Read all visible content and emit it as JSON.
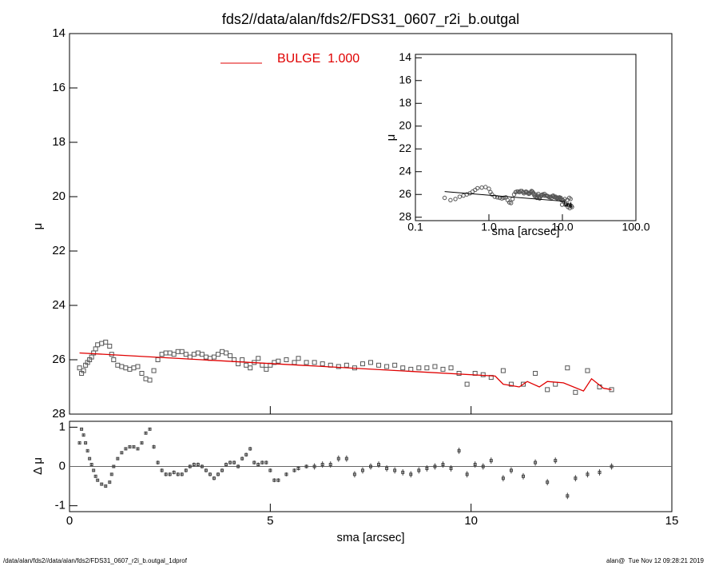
{
  "chart_data": {
    "type": "scatter",
    "title": "fds2//data/alan/fds2/FDS31_0607_r2i_b.outgal",
    "xlabel": "sma [arcsec]",
    "ylabel": "μ",
    "xlim": [
      0,
      15
    ],
    "xticks": [
      0,
      5,
      10,
      15
    ],
    "ylim": [
      28,
      14
    ],
    "yticks": [
      14,
      16,
      18,
      20,
      22,
      24,
      26,
      28
    ],
    "x": [
      0.25,
      0.3,
      0.35,
      0.4,
      0.45,
      0.5,
      0.55,
      0.6,
      0.65,
      0.7,
      0.8,
      0.9,
      1.0,
      1.05,
      1.1,
      1.2,
      1.3,
      1.4,
      1.5,
      1.6,
      1.7,
      1.8,
      1.9,
      2.0,
      2.1,
      2.2,
      2.3,
      2.4,
      2.5,
      2.6,
      2.7,
      2.8,
      2.9,
      3.0,
      3.1,
      3.2,
      3.3,
      3.4,
      3.5,
      3.6,
      3.7,
      3.8,
      3.9,
      4.0,
      4.1,
      4.2,
      4.3,
      4.4,
      4.5,
      4.6,
      4.7,
      4.8,
      4.9,
      5.0,
      5.1,
      5.2,
      5.4,
      5.6,
      5.7,
      5.9,
      6.1,
      6.3,
      6.5,
      6.7,
      6.9,
      7.1,
      7.3,
      7.5,
      7.7,
      7.9,
      8.1,
      8.3,
      8.5,
      8.7,
      8.9,
      9.1,
      9.3,
      9.5,
      9.7,
      9.9,
      10.1,
      10.3,
      10.5,
      10.8,
      11.0,
      11.3,
      11.6,
      11.9,
      12.1,
      12.4,
      12.6,
      12.9,
      13.2,
      13.5
    ],
    "series": [
      {
        "color": "#555555",
        "values": [
          26.3,
          26.5,
          26.4,
          26.2,
          26.1,
          26.0,
          25.9,
          25.75,
          25.6,
          25.45,
          25.4,
          25.35,
          25.5,
          25.8,
          26.0,
          26.2,
          26.25,
          26.3,
          26.35,
          26.3,
          26.25,
          26.5,
          26.7,
          26.75,
          26.4,
          26.0,
          25.8,
          25.75,
          25.75,
          25.8,
          25.7,
          25.7,
          25.8,
          25.9,
          25.8,
          25.75,
          25.8,
          25.9,
          25.95,
          25.9,
          25.8,
          25.7,
          25.75,
          25.85,
          26.0,
          26.15,
          26.0,
          26.2,
          26.3,
          26.1,
          25.95,
          26.2,
          26.35,
          26.2,
          26.1,
          26.05,
          26.0,
          26.1,
          25.95,
          26.1,
          26.1,
          26.15,
          26.2,
          26.25,
          26.2,
          26.3,
          26.15,
          26.1,
          26.2,
          26.25,
          26.2,
          26.3,
          26.35,
          26.3,
          26.3,
          26.25,
          26.35,
          26.3,
          26.5,
          26.9,
          26.5,
          26.55,
          26.65,
          26.4,
          26.9,
          26.9,
          26.5,
          27.1,
          26.9,
          26.3,
          27.2,
          26.4,
          27.0,
          27.1
        ]
      }
    ],
    "model": {
      "name": "BULGE  1.000",
      "color": "#e00000",
      "x": [
        0.25,
        10.6,
        10.8,
        11.2,
        11.4,
        11.7,
        11.9,
        12.3,
        12.8,
        13.0,
        13.3,
        13.5
      ],
      "values": [
        25.75,
        26.6,
        26.9,
        27.0,
        26.8,
        27.0,
        26.8,
        26.85,
        27.15,
        26.7,
        27.05,
        27.1
      ]
    },
    "residual": {
      "ylabel": "Δ μ",
      "ylim": [
        -1.15,
        1.15
      ],
      "yticks": [
        -1,
        0,
        1
      ],
      "zero_line": true,
      "values": [
        0.6,
        0.95,
        0.8,
        0.6,
        0.4,
        0.2,
        0.05,
        -0.1,
        -0.25,
        -0.35,
        -0.45,
        -0.5,
        -0.4,
        -0.2,
        0.0,
        0.2,
        0.35,
        0.45,
        0.5,
        0.5,
        0.45,
        0.6,
        0.85,
        0.95,
        0.5,
        0.1,
        -0.1,
        -0.2,
        -0.2,
        -0.15,
        -0.2,
        -0.2,
        -0.1,
        0.0,
        0.05,
        0.05,
        0.0,
        -0.1,
        -0.2,
        -0.3,
        -0.2,
        -0.1,
        0.05,
        0.1,
        0.1,
        0.0,
        0.2,
        0.3,
        0.45,
        0.1,
        0.05,
        0.1,
        0.1,
        -0.1,
        -0.35,
        -0.35,
        -0.2,
        -0.1,
        -0.05,
        0.0,
        0.0,
        0.05,
        0.05,
        0.2,
        0.2,
        -0.2,
        -0.1,
        0.0,
        0.05,
        -0.05,
        -0.1,
        -0.15,
        -0.2,
        -0.1,
        -0.05,
        0.0,
        0.05,
        -0.05,
        0.4,
        -0.2,
        0.05,
        0.0,
        0.15,
        -0.3,
        -0.1,
        -0.25,
        0.1,
        -0.4,
        0.15,
        -0.75,
        -0.3,
        -0.2,
        -0.15,
        0.0
      ],
      "errors": [
        0.03,
        0.03,
        0.03,
        0.03,
        0.03,
        0.03,
        0.03,
        0.03,
        0.03,
        0.03,
        0.03,
        0.03,
        0.03,
        0.03,
        0.03,
        0.03,
        0.03,
        0.03,
        0.03,
        0.03,
        0.03,
        0.03,
        0.03,
        0.03,
        0.05,
        0.05,
        0.05,
        0.05,
        0.05,
        0.05,
        0.05,
        0.05,
        0.05,
        0.05,
        0.05,
        0.05,
        0.05,
        0.05,
        0.05,
        0.05,
        0.05,
        0.05,
        0.05,
        0.05,
        0.05,
        0.05,
        0.05,
        0.05,
        0.05,
        0.05,
        0.05,
        0.05,
        0.05,
        0.05,
        0.05,
        0.05,
        0.05,
        0.05,
        0.05,
        0.05,
        0.08,
        0.08,
        0.08,
        0.08,
        0.08,
        0.08,
        0.08,
        0.08,
        0.08,
        0.08,
        0.08,
        0.08,
        0.08,
        0.08,
        0.08,
        0.08,
        0.08,
        0.08,
        0.08,
        0.08,
        0.08,
        0.08,
        0.08,
        0.08,
        0.08,
        0.08,
        0.08,
        0.08,
        0.08,
        0.08,
        0.08,
        0.08,
        0.08,
        0.08
      ]
    },
    "inset": {
      "log_x": true,
      "xlabel": "sma [arcsec]",
      "ylabel": "μ",
      "line_color": "#000000",
      "xlim": [
        0.1,
        100
      ],
      "xticks": [
        0.1,
        {
          "value": 1,
          "label": "1.0"
        },
        {
          "value": 10,
          "label": "10.0"
        },
        {
          "value": 100,
          "label": "100.0"
        }
      ],
      "ylim": [
        28.3,
        13.7
      ],
      "yticks": [
        14,
        16,
        18,
        20,
        22,
        24,
        26,
        28
      ]
    }
  },
  "footer": {
    "left": "/data/alan/fds2//data/alan/fds2/FDS31_0607_r2i_b.outgal_1dprof",
    "right": "alan@  Tue Nov 12 09:28:21 2019"
  }
}
